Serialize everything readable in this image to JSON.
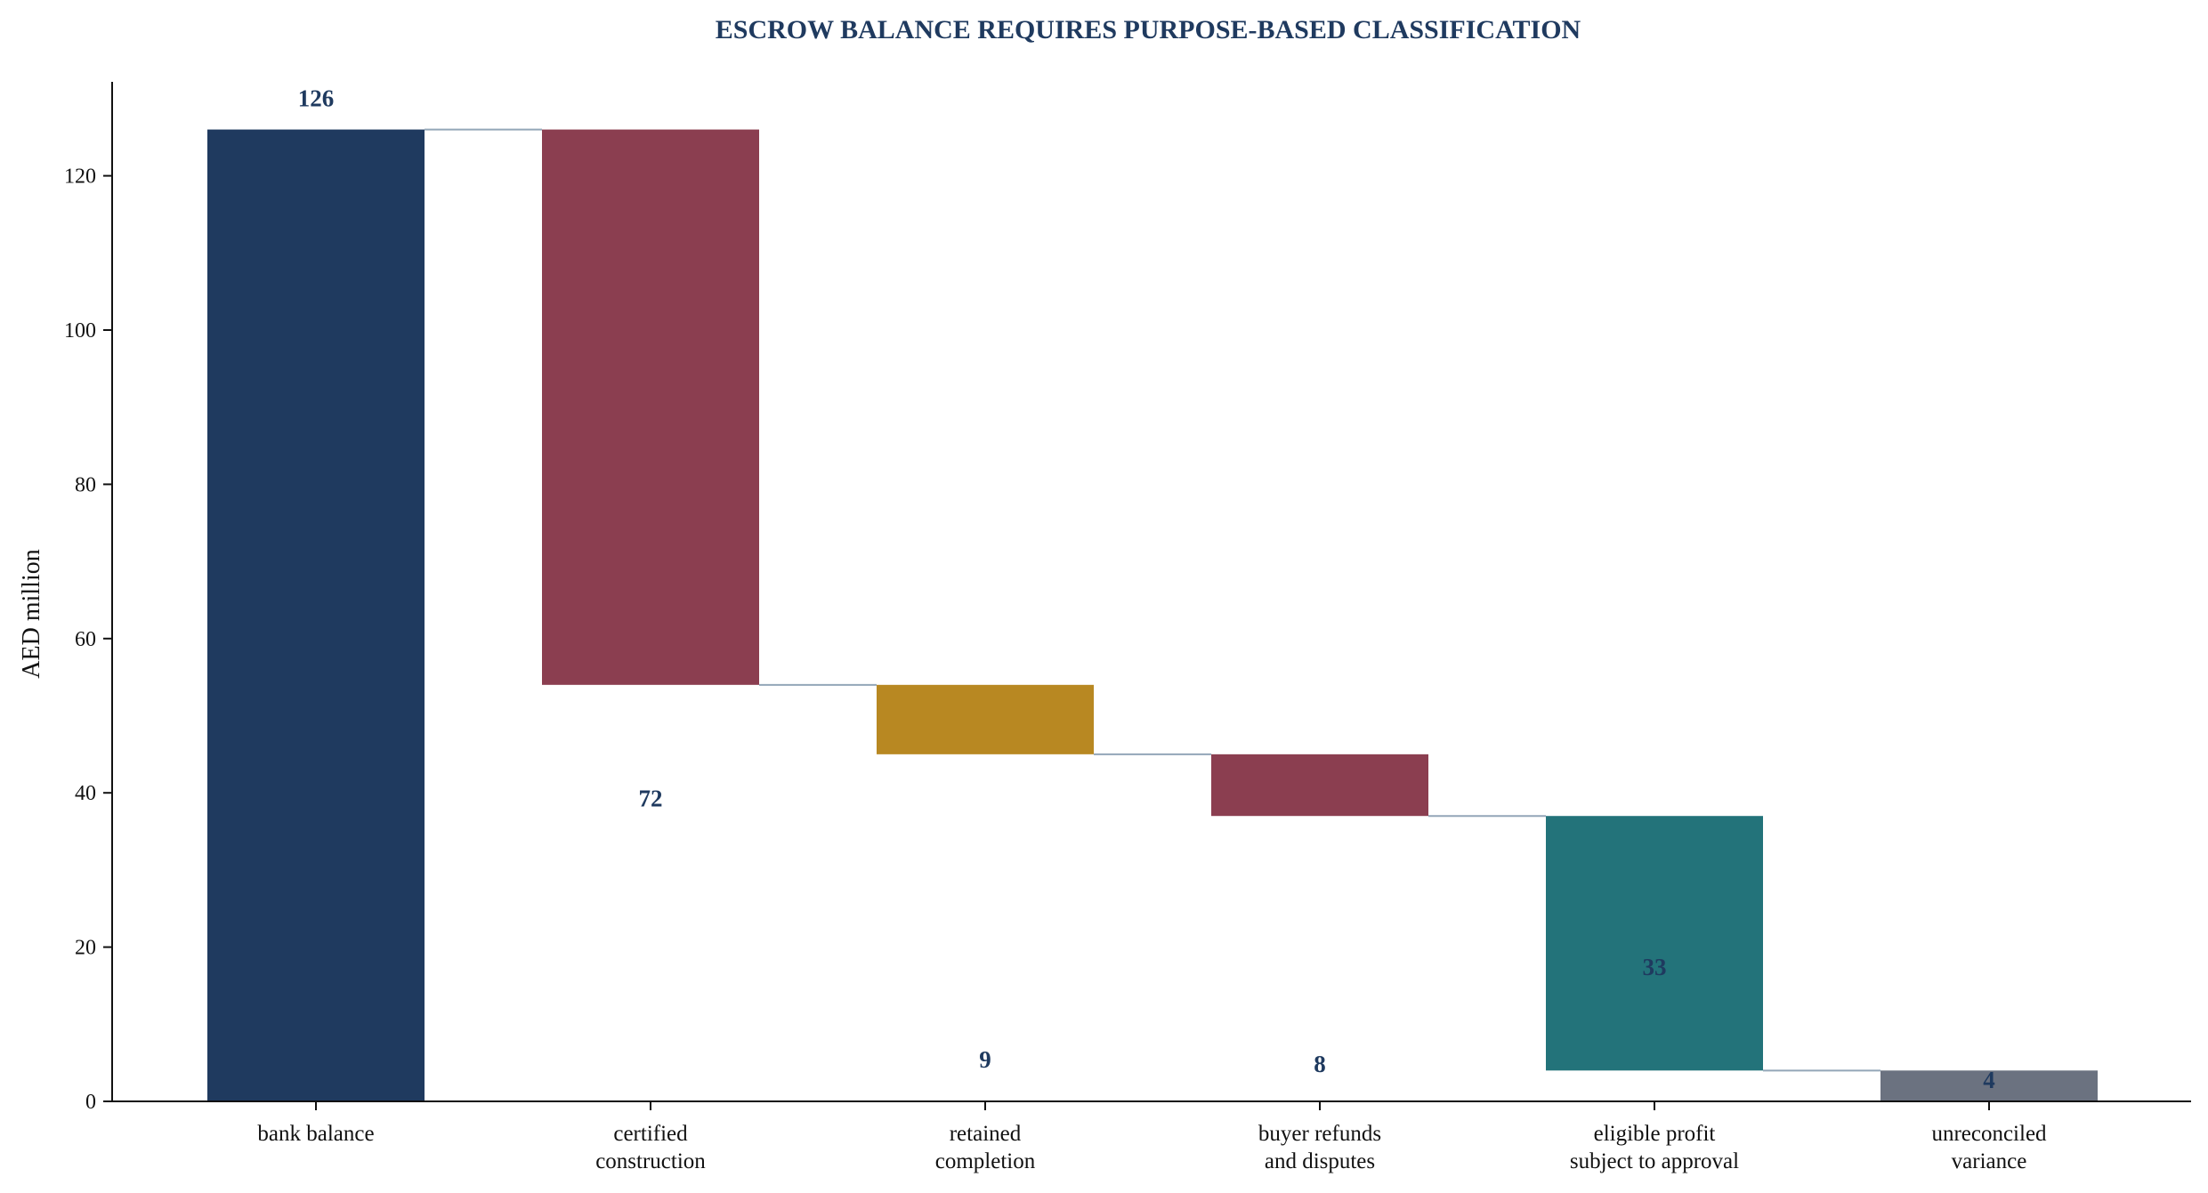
{
  "chart_data": {
    "type": "bar",
    "subtype": "waterfall",
    "title": "ESCROW BALANCE REQUIRES PURPOSE-BASED CLASSIFICATION",
    "xlabel": "",
    "ylabel": "AED million",
    "ylim": [
      0,
      132
    ],
    "yticks": [
      0,
      20,
      40,
      60,
      80,
      100,
      120
    ],
    "grid": false,
    "legend": "none",
    "categories": [
      [
        "bank balance"
      ],
      [
        "certified",
        "construction"
      ],
      [
        "retained",
        "completion"
      ],
      [
        "buyer refunds",
        "and disputes"
      ],
      [
        "eligible profit",
        "subject to approval"
      ],
      [
        "unreconciled",
        "variance"
      ]
    ],
    "values": [
      126,
      72,
      9,
      8,
      33,
      4
    ],
    "value_labels": [
      "126",
      "72",
      "9",
      "8",
      "33",
      "4"
    ],
    "steps": [
      {
        "kind": "total",
        "start": 0,
        "end": 126,
        "color": "#1f3a5f"
      },
      {
        "kind": "decrease",
        "start": 126,
        "end": 54,
        "color": "#8b3e50"
      },
      {
        "kind": "decrease",
        "start": 54,
        "end": 45,
        "color": "#b88822"
      },
      {
        "kind": "decrease",
        "start": 45,
        "end": 37,
        "color": "#8b3e50"
      },
      {
        "kind": "decrease",
        "start": 37,
        "end": 4,
        "color": "#23737a"
      },
      {
        "kind": "residual",
        "start": 4,
        "end": 0,
        "color": "#6b7280"
      }
    ],
    "connector_color": "#93a6b8",
    "label_color": "#1f3a5f"
  }
}
